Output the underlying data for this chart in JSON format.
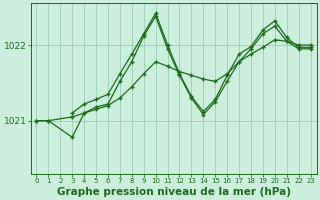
{
  "bg_color": "#cceedd",
  "grid_color": "#99ccbb",
  "line_color": "#1a6b1a",
  "xlabel": "Graphe pression niveau de la mer (hPa)",
  "xlabel_fontsize": 7.5,
  "xlim": [
    -0.5,
    23.5
  ],
  "ylim": [
    1020.3,
    1022.55
  ],
  "yticks": [
    1021,
    1022
  ],
  "xticks": [
    0,
    1,
    2,
    3,
    4,
    5,
    6,
    7,
    8,
    9,
    10,
    11,
    12,
    13,
    14,
    15,
    16,
    17,
    18,
    19,
    20,
    21,
    22,
    23
  ],
  "line1_x": [
    0,
    1,
    3,
    4,
    5,
    6,
    7,
    8,
    9,
    10,
    11,
    12,
    13,
    14,
    15,
    16,
    17,
    18,
    19,
    20,
    21,
    22,
    23
  ],
  "line1_y": [
    1021.0,
    1021.0,
    1020.78,
    1021.1,
    1021.18,
    1021.22,
    1021.52,
    1021.78,
    1022.12,
    1022.38,
    1021.95,
    1021.6,
    1021.3,
    1021.08,
    1021.25,
    1021.52,
    1021.78,
    1021.95,
    1022.15,
    1022.25,
    1022.05,
    1021.95,
    1021.95
  ],
  "line2_x": [
    0,
    1,
    3,
    4,
    5,
    6,
    7,
    8,
    9,
    10,
    11,
    12,
    13,
    14,
    15,
    16,
    17,
    18,
    19,
    20,
    21,
    22,
    23
  ],
  "line2_y": [
    1021.0,
    1021.0,
    1021.05,
    1021.1,
    1021.15,
    1021.2,
    1021.3,
    1021.45,
    1021.62,
    1021.78,
    1021.72,
    1021.65,
    1021.6,
    1021.55,
    1021.52,
    1021.62,
    1021.78,
    1021.88,
    1021.97,
    1022.07,
    1022.05,
    1022.0,
    1022.0
  ],
  "line3_x": [
    3,
    4,
    5,
    6,
    7,
    8,
    9,
    10,
    11,
    12,
    13,
    14,
    15,
    16,
    17,
    18,
    19,
    20,
    21,
    22,
    23
  ],
  "line3_y": [
    1021.1,
    1021.22,
    1021.28,
    1021.35,
    1021.62,
    1021.88,
    1022.15,
    1022.42,
    1022.0,
    1021.62,
    1021.32,
    1021.12,
    1021.28,
    1021.6,
    1021.88,
    1021.98,
    1022.2,
    1022.32,
    1022.1,
    1021.97,
    1021.97
  ]
}
